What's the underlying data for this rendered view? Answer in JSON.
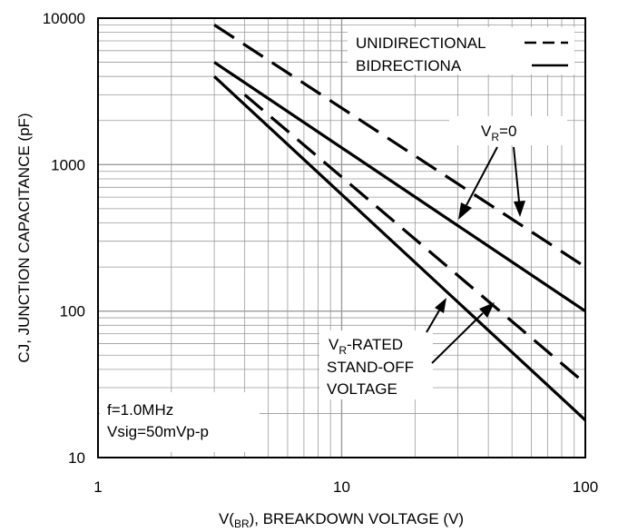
{
  "chart_data": {
    "type": "line",
    "x_scale": "log",
    "y_scale": "log",
    "xlim": [
      1,
      100
    ],
    "ylim": [
      10,
      10000
    ],
    "grid": true,
    "xlabel": {
      "pre": "V(",
      "sub": "BR",
      "post": "), BREAKDOWN VOLTAGE (V)"
    },
    "ylabel": "CJ, JUNCTION CAPACITANCE (pF)",
    "x_ticks": [
      {
        "value": 1,
        "label": "1"
      },
      {
        "value": 10,
        "label": "10"
      },
      {
        "value": 100,
        "label": "100"
      }
    ],
    "y_ticks": [
      {
        "value": 10,
        "label": "10"
      },
      {
        "value": 100,
        "label": "100"
      },
      {
        "value": 1000,
        "label": "1000"
      },
      {
        "value": 10000,
        "label": "10000"
      }
    ],
    "legend": {
      "placement": "top-right",
      "entries": [
        {
          "label": "UNIDIRECTIONAL",
          "style": "dashed"
        },
        {
          "label": "BIDRECTIONA",
          "style": "solid"
        }
      ]
    },
    "series": [
      {
        "style": "dashed",
        "x": [
          3,
          100
        ],
        "y": [
          9000,
          200
        ]
      },
      {
        "style": "solid",
        "x": [
          3,
          100
        ],
        "y": [
          5000,
          100
        ]
      },
      {
        "style": "dashed",
        "x": [
          4,
          100
        ],
        "y": [
          3000,
          32
        ]
      },
      {
        "style": "solid",
        "x": [
          3,
          100
        ],
        "y": [
          4000,
          18
        ]
      }
    ],
    "annotations": {
      "vr0": {
        "pre": "V",
        "sub": "R",
        "post": "=0"
      },
      "vr_rated": {
        "line1_pre": "V",
        "line1_sub": "R",
        "line1_post": "-RATED",
        "line2": "STAND-OFF",
        "line3": "VOLTAGE"
      },
      "conditions": {
        "line1": "f=1.0MHz",
        "line2": "Vsig=50mVp-p"
      }
    }
  }
}
